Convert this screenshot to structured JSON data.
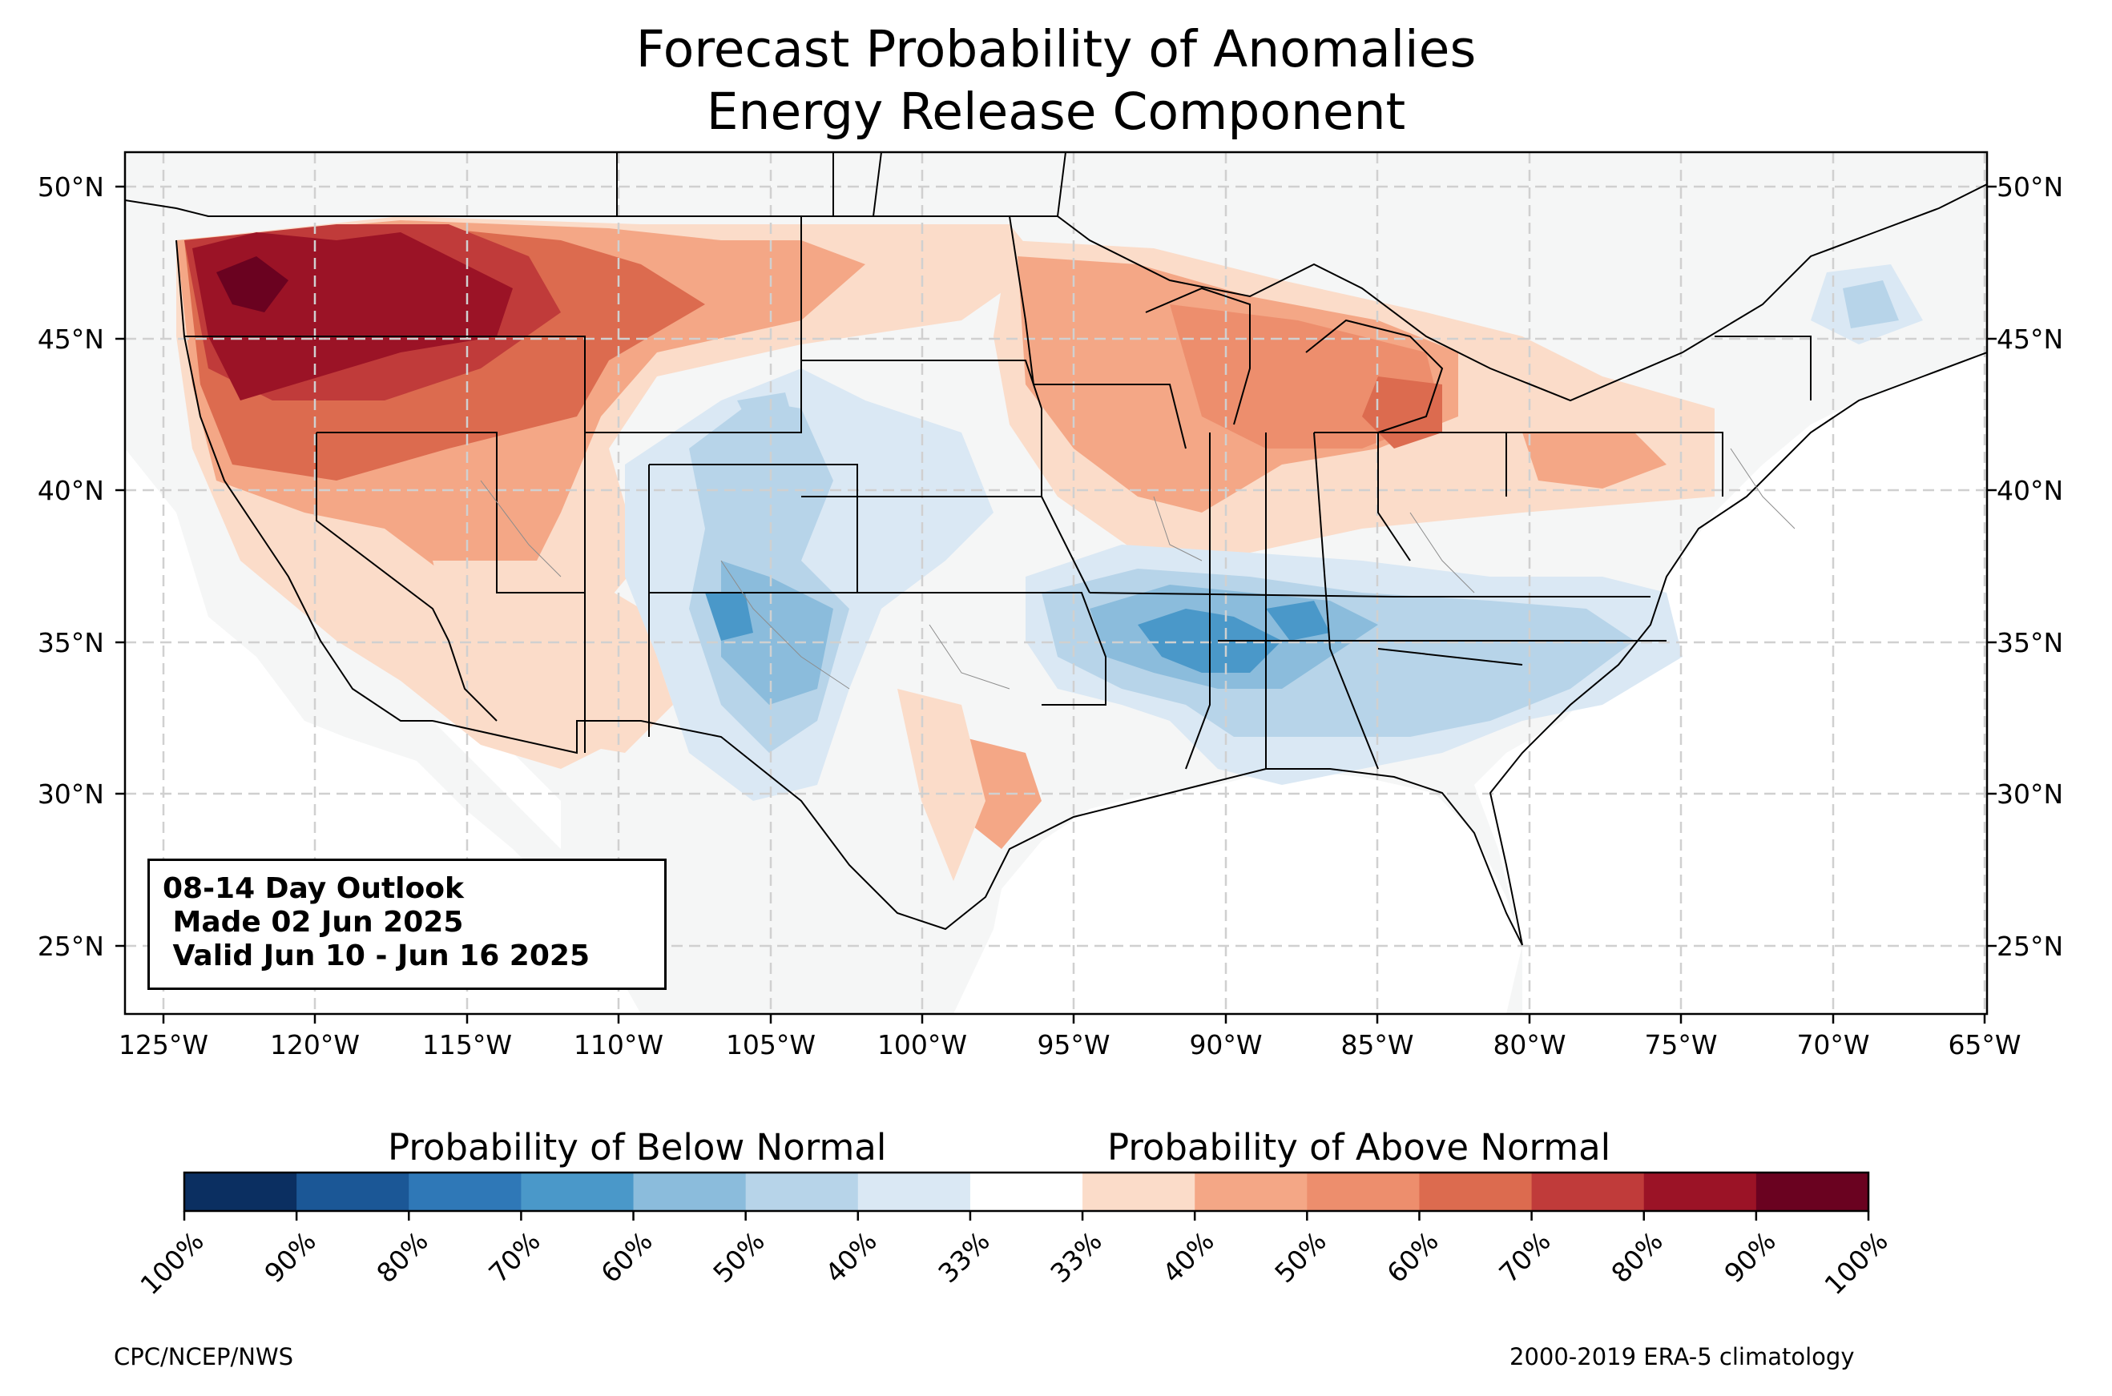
{
  "title": {
    "line1": "Forecast Probability of Anomalies",
    "line2": "Energy Release Component"
  },
  "info_box": {
    "line1": "08-14 Day Outlook",
    "line2": " Made 02 Jun 2025",
    "line3": " Valid Jun 10 - Jun 16 2025"
  },
  "lat_labels": [
    "50°N",
    "45°N",
    "40°N",
    "35°N",
    "30°N",
    "25°N"
  ],
  "lon_labels": [
    "125°W",
    "120°W",
    "115°W",
    "110°W",
    "105°W",
    "100°W",
    "95°W",
    "90°W",
    "85°W",
    "80°W",
    "75°W",
    "70°W",
    "65°W"
  ],
  "colorbar": {
    "below_title": "Probability of Below Normal",
    "above_title": "Probability of Above Normal",
    "labels": [
      "100%",
      "90%",
      "80%",
      "70%",
      "60%",
      "50%",
      "40%",
      "33%",
      "33%",
      "40%",
      "50%",
      "60%",
      "70%",
      "80%",
      "90%",
      "100%"
    ],
    "colors": [
      "#0b2f61",
      "#1b5796",
      "#2f78b7",
      "#4a98c9",
      "#8bbcdc",
      "#b7d4e9",
      "#dae8f4",
      "#ffffff",
      "#fbdcc9",
      "#f4a786",
      "#ed8e6d",
      "#dc6b4f",
      "#c03b3a",
      "#9b1326",
      "#6a0220"
    ]
  },
  "footer": {
    "left": "CPC/NCEP/NWS",
    "right": "2000-2019 ERA-5 climatology"
  },
  "colors": {
    "land": "#f5f6f6",
    "gridline": "#d0d0d0"
  }
}
